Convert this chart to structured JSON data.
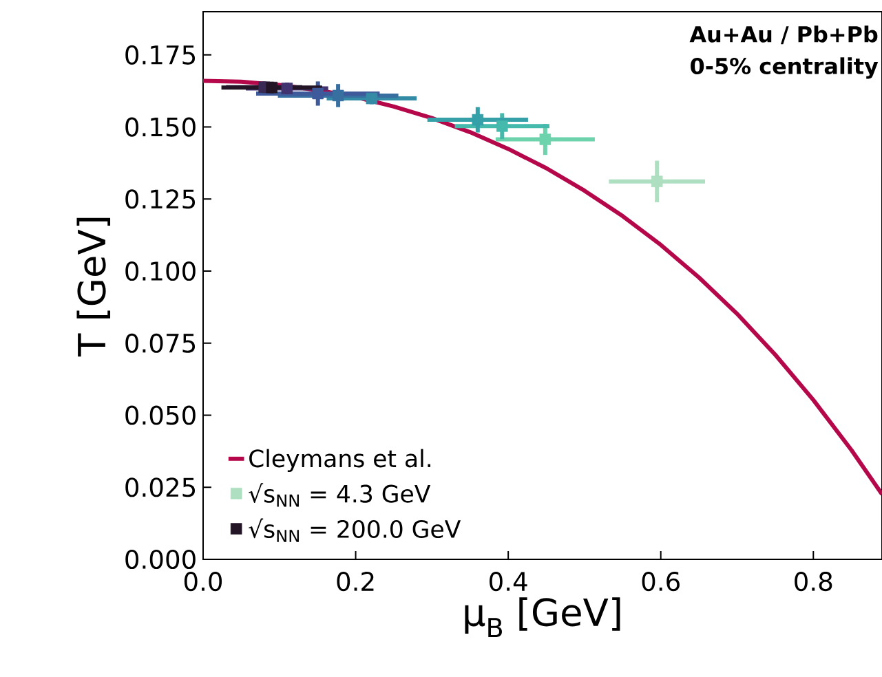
{
  "chart_data": {
    "type": "scatter",
    "xlabel": "μ$_{B}$ [GeV]",
    "ylabel": "T [GeV]",
    "annotations": [
      "Au+Au / Pb+Pb",
      "0-5% centrality"
    ],
    "xlim": [
      0,
      0.89
    ],
    "ylim": [
      0,
      0.19
    ],
    "xticks": [
      {
        "value": 0,
        "label": "0.0"
      },
      {
        "value": 0.2,
        "label": "0.2"
      },
      {
        "value": 0.4,
        "label": "0.4"
      },
      {
        "value": 0.6,
        "label": "0.6"
      },
      {
        "value": 0.8,
        "label": "0.8"
      }
    ],
    "yticks": [
      {
        "value": 0,
        "label": "0.000"
      },
      {
        "value": 0.025,
        "label": "0.025"
      },
      {
        "value": 0.05,
        "label": "0.050"
      },
      {
        "value": 0.075,
        "label": "0.075"
      },
      {
        "value": 0.1,
        "label": "0.100"
      },
      {
        "value": 0.125,
        "label": "0.125"
      },
      {
        "value": 0.15,
        "label": "0.150"
      },
      {
        "value": 0.175,
        "label": "0.175"
      }
    ],
    "legend": "bottom left",
    "grid": false,
    "series": [
      {
        "type": "line",
        "name": "Cleymans et al.",
        "color": "#b5084a",
        "x": [
          0,
          0.05,
          0.1,
          0.15,
          0.2,
          0.25,
          0.3,
          0.35,
          0.4,
          0.45,
          0.5,
          0.55,
          0.6,
          0.65,
          0.7,
          0.75,
          0.8,
          0.85,
          0.89
        ],
        "values": [
          0.166,
          0.1657,
          0.1646,
          0.1628,
          0.1604,
          0.1571,
          0.1531,
          0.1482,
          0.1424,
          0.1357,
          0.1279,
          0.1191,
          0.1091,
          0.0978,
          0.0852,
          0.071,
          0.0553,
          0.0379,
          0.0226
        ]
      },
      {
        "name": "√s$_{NN}$ = 4.3 GeV",
        "marker": "square",
        "color": "#addfc0",
        "x": [
          0.595
        ],
        "values": [
          0.1311
        ],
        "errors": [
          0.0072
        ],
        "xerrors": [
          0.063
        ]
      },
      {
        "type": "scatter",
        "color": "#6dd3ad",
        "x": [
          0.4485
        ],
        "values": [
          0.1457
        ],
        "errors": [
          0.0054
        ],
        "xerrors": [
          0.065
        ]
      },
      {
        "type": "scatter",
        "color": "#45b9ac",
        "x": [
          0.392
        ],
        "values": [
          0.1503
        ],
        "errors": [
          0.0045
        ],
        "xerrors": [
          0.062
        ]
      },
      {
        "type": "scatter",
        "color": "#35a0a8",
        "x": [
          0.36
        ],
        "values": [
          0.1525
        ],
        "errors": [
          0.0044
        ],
        "xerrors": [
          0.066
        ]
      },
      {
        "type": "scatter",
        "color": "#348ba6",
        "x": [
          0.221
        ],
        "values": [
          0.1599
        ],
        "errors": [
          0.002
        ],
        "xerrors": [
          0.059
        ]
      },
      {
        "type": "scatter",
        "color": "#3770a0",
        "x": [
          0.177
        ],
        "values": [
          0.1609
        ],
        "errors": [
          0.004
        ],
        "xerrors": [
          0.079
        ]
      },
      {
        "type": "scatter",
        "color": "#3e5a9a",
        "x": [
          0.1505
        ],
        "values": [
          0.1616
        ],
        "errors": [
          0.0042
        ],
        "xerrors": [
          0.081
        ]
      },
      {
        "type": "scatter",
        "color": "#40336f",
        "x": [
          0.11
        ],
        "values": [
          0.1634
        ],
        "errors": [
          0.002
        ],
        "xerrors": [
          0.054
        ]
      },
      {
        "type": "scatter",
        "color": "#382a54",
        "x": [
          0.08
        ],
        "values": [
          0.1638
        ],
        "errors": [
          0.002
        ],
        "xerrors": [
          0.05
        ]
      },
      {
        "type": "scatter",
        "name": "√s$_{NN}$ = 200.0 GeV",
        "color": "#231526",
        "x": [
          0.09
        ],
        "values": [
          0.1637
        ],
        "errors": [
          0.002
        ],
        "xerrors": [
          0.066
        ]
      }
    ]
  }
}
